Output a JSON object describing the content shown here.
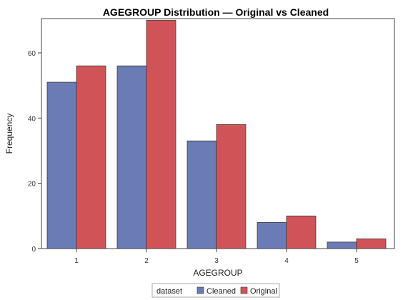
{
  "chart_data": {
    "type": "bar",
    "title": "AGEGROUP Distribution — Original vs Cleaned",
    "xlabel": "AGEGROUP",
    "ylabel": "Frequency",
    "categories": [
      "1",
      "2",
      "3",
      "4",
      "5"
    ],
    "series": [
      {
        "name": "Cleaned",
        "color": "#6a7bb5",
        "values": [
          51,
          56,
          33,
          8,
          2
        ]
      },
      {
        "name": "Original",
        "color": "#d05457",
        "values": [
          56,
          70,
          38,
          10,
          3
        ]
      }
    ],
    "ylim": [
      0,
      70
    ],
    "yticks": [
      0,
      20,
      40,
      60
    ],
    "grid": false,
    "legend": {
      "title": "dataset",
      "placement": "bottom-center"
    }
  }
}
